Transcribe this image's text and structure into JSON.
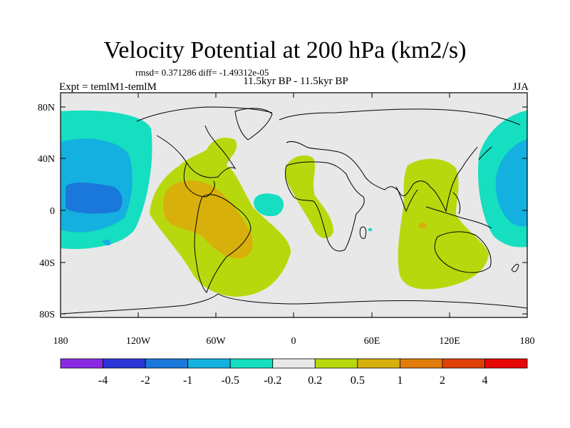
{
  "title": "Velocity Potential at 200 hPa (km2/s)",
  "stats": "rmsd= 0.371286 diff= -1.49312e-05",
  "subtitle": "11.5kyr BP - 11.5kyr BP",
  "expt": "Expt = temlM1-temlM",
  "season": "JJA",
  "lat_ticks": [
    "80N",
    "40N",
    "0",
    "40S",
    "80S"
  ],
  "lon_ticks": [
    "180",
    "120W",
    "60W",
    "0",
    "60E",
    "120E",
    "180"
  ],
  "colorbar": {
    "colors": [
      "#8a2be2",
      "#2a35d8",
      "#1a78da",
      "#14b0e0",
      "#16dec0",
      "#e8e8e8",
      "#b8d80e",
      "#d8b00c",
      "#e07c0a",
      "#e04008",
      "#e80808"
    ],
    "labels": [
      "-4",
      "-2",
      "-1",
      "-0.5",
      "-0.2",
      "0.2",
      "0.5",
      "1",
      "2",
      "4"
    ]
  }
}
